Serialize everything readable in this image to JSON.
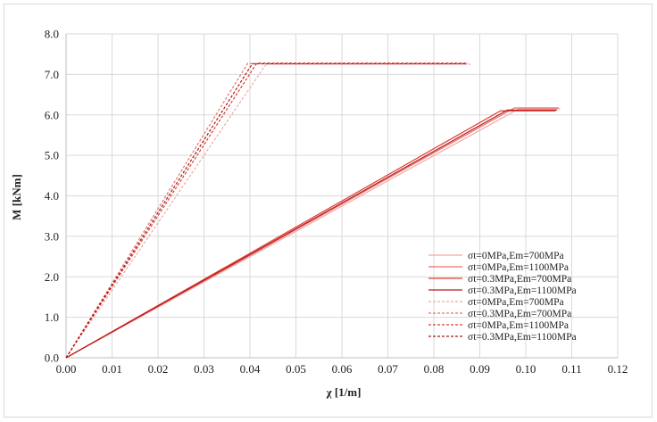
{
  "chart_data": {
    "type": "line",
    "title": "",
    "xlabel": "χ [1/m]",
    "ylabel": "M [kNm]",
    "xlim": [
      0,
      0.12
    ],
    "ylim": [
      0,
      8
    ],
    "xticks": [
      "0.00",
      "0.01",
      "0.02",
      "0.03",
      "0.04",
      "0.05",
      "0.06",
      "0.07",
      "0.08",
      "0.09",
      "0.10",
      "0.11",
      "0.12"
    ],
    "yticks": [
      "0.0",
      "1.0",
      "2.0",
      "3.0",
      "4.0",
      "5.0",
      "6.0",
      "7.0",
      "8.0"
    ],
    "grid": true,
    "legend_position": "bottom-right",
    "series": [
      {
        "name": "σt=0MPa,Em=700MPa",
        "color": "#f4a6a6",
        "dash": "solid",
        "x": [
          0,
          0.0985,
          0.1075
        ],
        "y": [
          0,
          6.15,
          6.15
        ]
      },
      {
        "name": "σt=0MPa,Em=1100MPa",
        "color": "#e8706b",
        "dash": "solid",
        "x": [
          0,
          0.0975,
          0.1072
        ],
        "y": [
          0,
          6.17,
          6.17
        ]
      },
      {
        "name": "σt=0.3MPa,Em=700MPa",
        "color": "#e03a30",
        "dash": "solid",
        "x": [
          0,
          0.0945,
          0.1065
        ],
        "y": [
          0,
          6.1,
          6.1
        ]
      },
      {
        "name": "σt=0.3MPa,Em=1100MPa",
        "color": "#b51d1d",
        "dash": "solid",
        "x": [
          0,
          0.096,
          0.1068
        ],
        "y": [
          0,
          6.12,
          6.12
        ]
      },
      {
        "name": "σt=0MPa,Em=700MPa",
        "color": "#f4a6a6",
        "dash": "dashed",
        "x": [
          0,
          0.0435,
          0.088
        ],
        "y": [
          0,
          7.25,
          7.25
        ]
      },
      {
        "name": "σt=0.3MPa,Em=700MPa",
        "color": "#e8706b",
        "dash": "dashed",
        "x": [
          0,
          0.0395,
          0.087
        ],
        "y": [
          0,
          7.27,
          7.27
        ]
      },
      {
        "name": "σt=0MPa,Em=1100MPa",
        "color": "#e03a30",
        "dash": "dashed",
        "x": [
          0,
          0.0415,
          0.0875
        ],
        "y": [
          0,
          7.28,
          7.28
        ]
      },
      {
        "name": "σt=0.3MPa,Em=1100MPa",
        "color": "#9e1a1a",
        "dash": "dashed",
        "x": [
          0,
          0.0405,
          0.0872
        ],
        "y": [
          0,
          7.26,
          7.26
        ]
      }
    ]
  }
}
